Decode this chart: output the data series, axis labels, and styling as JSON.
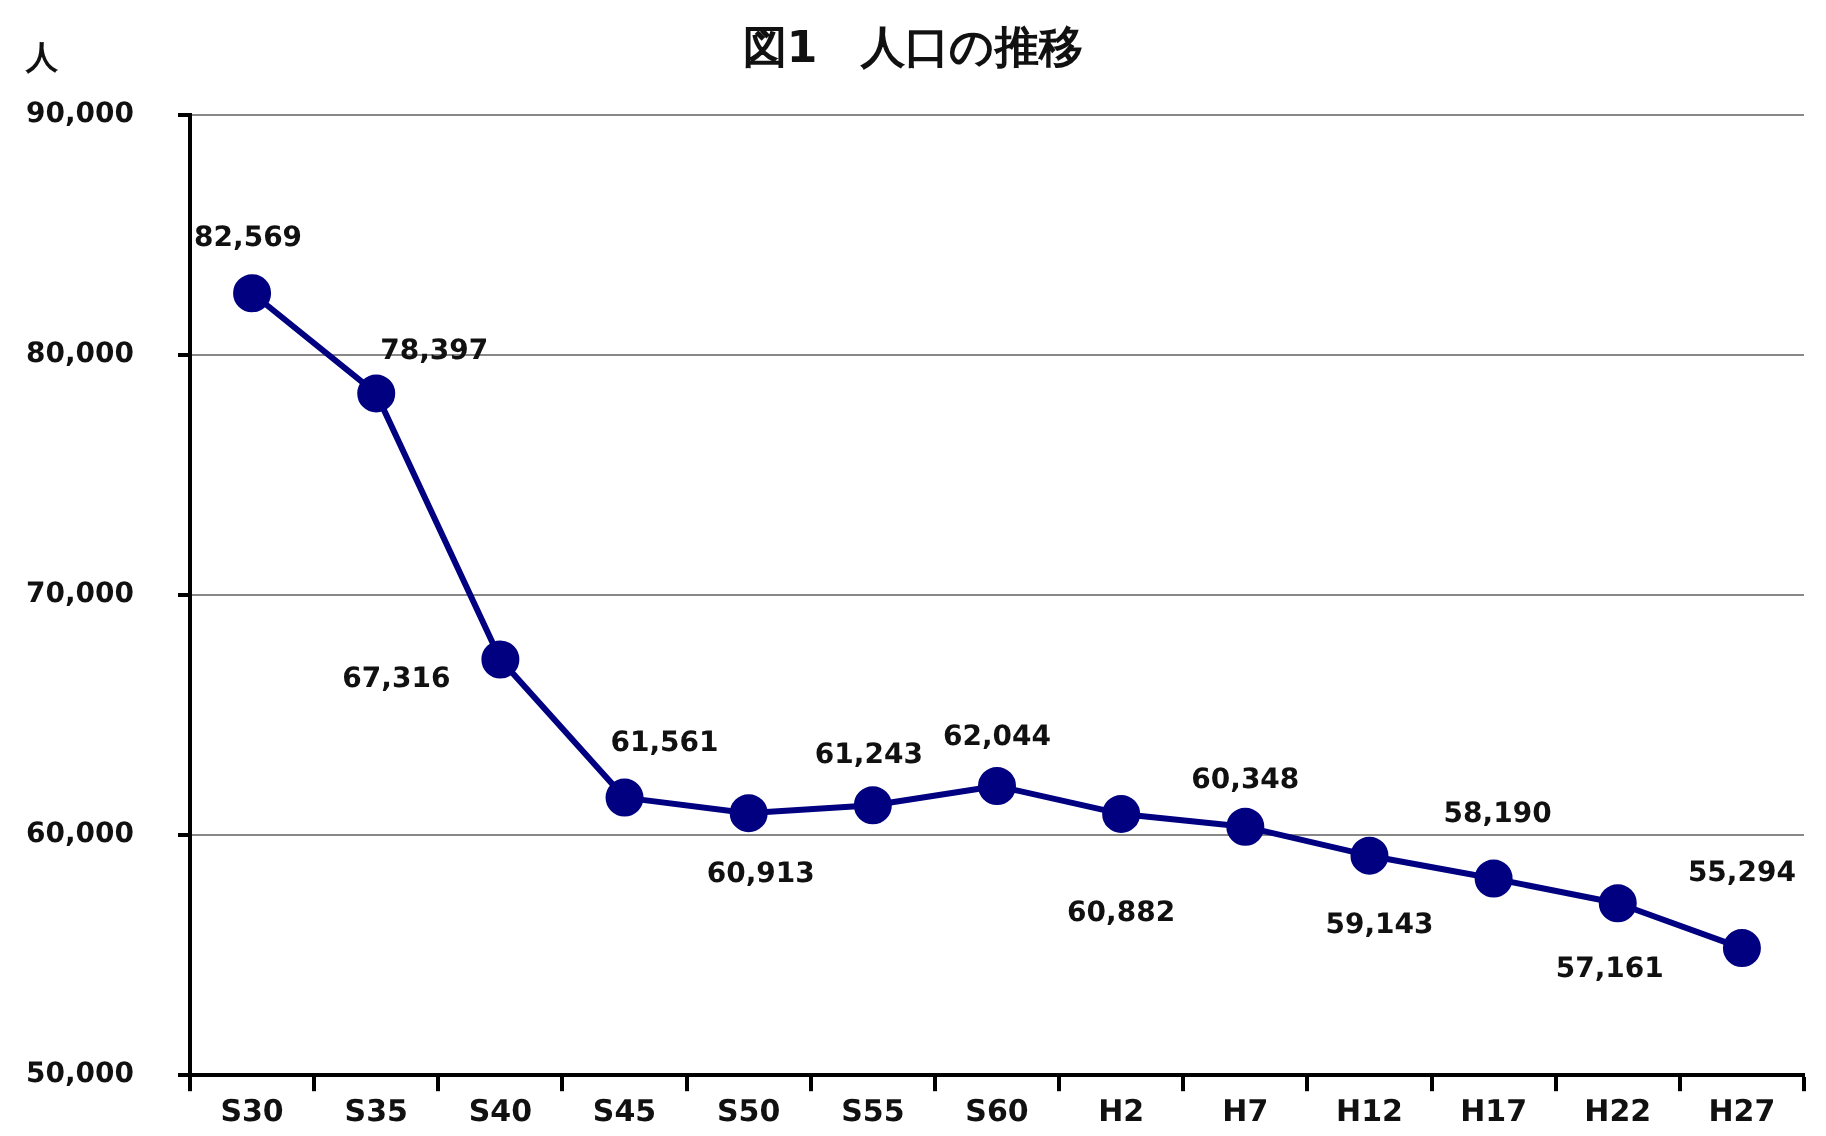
{
  "chart_data": {
    "type": "line",
    "title": "図1　人口の推移",
    "ylabel": "人",
    "categories": [
      "S30",
      "S35",
      "S40",
      "S45",
      "S50",
      "S55",
      "S60",
      "H2",
      "H7",
      "H12",
      "H17",
      "H22",
      "H27"
    ],
    "values": [
      82569,
      78397,
      67316,
      61561,
      60913,
      61243,
      62044,
      60882,
      60348,
      59143,
      58190,
      57161,
      55294
    ],
    "value_labels": [
      "82,569",
      "78,397",
      "67,316",
      "61,561",
      "60,913",
      "61,243",
      "62,044",
      "60,882",
      "60,348",
      "59,143",
      "58,190",
      "57,161",
      "55,294"
    ],
    "color": "#000080",
    "marker": "circle",
    "line_style": "solid",
    "ylim": [
      50000,
      90000
    ],
    "yticks": [
      {
        "value": 50000,
        "label": "50,000"
      },
      {
        "value": 60000,
        "label": "60,000"
      },
      {
        "value": 70000,
        "label": "70,000"
      },
      {
        "value": 80000,
        "label": "80,000"
      },
      {
        "value": 90000,
        "label": "90,000"
      }
    ],
    "grid": "y",
    "legend": false
  }
}
